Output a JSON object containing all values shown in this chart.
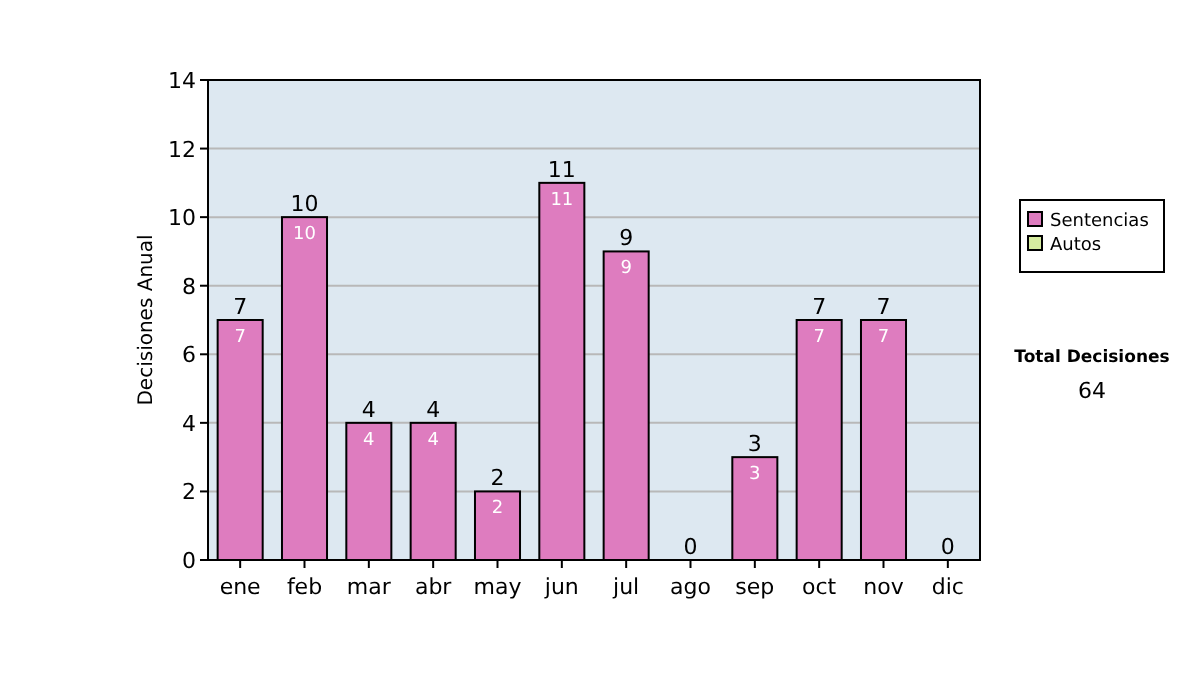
{
  "chart_data": {
    "type": "bar",
    "stacked": true,
    "ylabel": "Decisiones Anual",
    "categories": [
      "ene",
      "feb",
      "mar",
      "abr",
      "may",
      "jun",
      "jul",
      "ago",
      "sep",
      "oct",
      "nov",
      "dic"
    ],
    "series": [
      {
        "name": "Sentencias",
        "color": "#de7cbf",
        "values": [
          7,
          10,
          4,
          4,
          2,
          11,
          9,
          0,
          3,
          7,
          7,
          0
        ],
        "value_labels": [
          "7",
          "10",
          "4",
          "4",
          "2",
          "11",
          "9",
          null,
          "3",
          "7",
          "7",
          null
        ]
      },
      {
        "name": "Autos",
        "color": "#d6eca0",
        "values": [
          0,
          0,
          0,
          0,
          0,
          0,
          0,
          0,
          0,
          0,
          0,
          0
        ]
      }
    ],
    "totals": [
      "7",
      "10",
      "4",
      "4",
      "2",
      "11",
      "9",
      "0",
      "3",
      "7",
      "7",
      "0"
    ],
    "ylim": [
      0,
      14
    ],
    "yticks": [
      0,
      2,
      4,
      6,
      8,
      10,
      12,
      14
    ],
    "grid": "y",
    "legend": "right",
    "annotations": [
      "Total Decisiones",
      "64"
    ]
  }
}
